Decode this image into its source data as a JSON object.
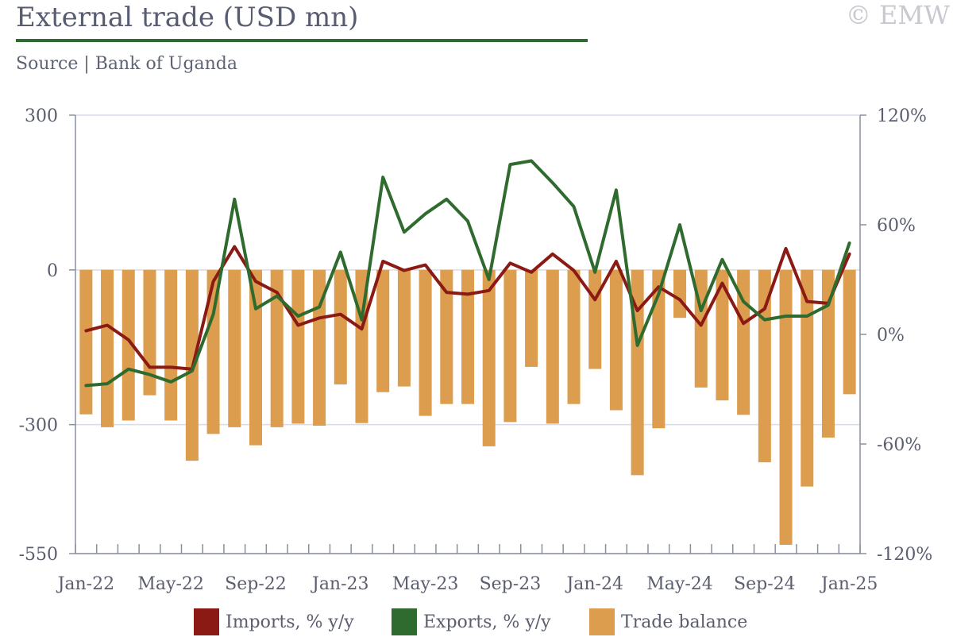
{
  "header": {
    "title": "External trade (USD mn)",
    "source": "Source | Bank of Uganda",
    "watermark": "© EMW"
  },
  "colors": {
    "imports": "#8b1a14",
    "exports": "#2f6b2e",
    "balance": "#dc9d4e",
    "title_rule": "#2f6b2e",
    "grid": "#d6dbe6",
    "axis": "#8a8fa0"
  },
  "chart_data": {
    "type": "bar",
    "title": "External trade (USD mn)",
    "x_ticks": [
      "Jan-22",
      "May-22",
      "Sep-22",
      "Jan-23",
      "May-23",
      "Sep-23",
      "Jan-24",
      "May-24",
      "Sep-24",
      "Jan-25"
    ],
    "left_axis": {
      "ylim": [
        -550,
        300
      ],
      "ticks": [
        "300",
        "0",
        "-300",
        "-550"
      ],
      "tick_values": [
        300,
        0,
        -300,
        -550
      ]
    },
    "right_axis": {
      "ylim": [
        -120,
        120
      ],
      "ticks": [
        "120%",
        "60%",
        "0%",
        "-60%",
        "-120%"
      ],
      "tick_values": [
        120,
        60,
        0,
        -60,
        -120
      ]
    },
    "grid": true,
    "legend_position": "bottom",
    "categories": [
      "Jan-22",
      "Feb-22",
      "Mar-22",
      "Apr-22",
      "May-22",
      "Jun-22",
      "Jul-22",
      "Aug-22",
      "Sep-22",
      "Oct-22",
      "Nov-22",
      "Dec-22",
      "Jan-23",
      "Feb-23",
      "Mar-23",
      "Apr-23",
      "May-23",
      "Jun-23",
      "Jul-23",
      "Aug-23",
      "Sep-23",
      "Oct-23",
      "Nov-23",
      "Dec-23",
      "Jan-24",
      "Feb-24",
      "Mar-24",
      "Apr-24",
      "May-24",
      "Jun-24",
      "Jul-24",
      "Aug-24",
      "Sep-24",
      "Oct-24",
      "Nov-24",
      "Dec-24",
      "Jan-25"
    ],
    "series": [
      {
        "name": "Imports, % y/y",
        "type": "line",
        "axis": "right",
        "values": [
          2,
          5,
          -3,
          -18,
          -18,
          -19,
          29,
          48,
          29,
          23,
          5,
          9,
          11,
          3,
          40,
          35,
          38,
          23,
          22,
          24,
          39,
          34,
          44,
          35,
          19,
          40,
          13,
          26,
          19,
          5,
          28,
          6,
          14,
          47,
          18,
          17,
          44
        ]
      },
      {
        "name": "Exports, % y/y",
        "type": "line",
        "axis": "right",
        "values": [
          -28,
          -27,
          -19,
          -22,
          -26,
          -20,
          11,
          74,
          14,
          21,
          10,
          15,
          45,
          8,
          86,
          56,
          66,
          74,
          62,
          30,
          93,
          95,
          83,
          70,
          34,
          79,
          -6,
          22,
          60,
          13,
          41,
          18,
          8,
          10,
          10,
          16,
          50
        ]
      },
      {
        "name": "Trade balance",
        "type": "bar",
        "axis": "left",
        "values": [
          -280,
          -305,
          -292,
          -243,
          -292,
          -370,
          -318,
          -305,
          -340,
          -305,
          -298,
          -302,
          -222,
          -297,
          -237,
          -226,
          -283,
          -260,
          -260,
          -342,
          -295,
          -188,
          -298,
          -260,
          -192,
          -272,
          -398,
          -307,
          -93,
          -228,
          -253,
          -281,
          -373,
          -533,
          -420,
          -325,
          -241
        ]
      }
    ]
  }
}
